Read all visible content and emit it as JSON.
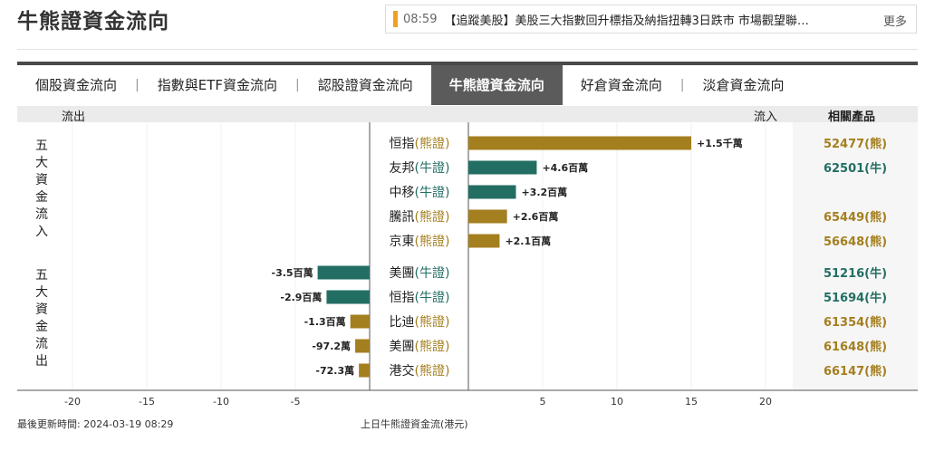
{
  "page_title": "牛熊證資金流向",
  "news": {
    "time": "08:59",
    "headline": "【追蹤美股】美股三大指數回升標指及納指扭轉3日跌市 市場觀望聯…",
    "more": "更多"
  },
  "tabs": [
    "個股資金流向",
    "指數與ETF資金流向",
    "認股證資金流向",
    "牛熊證資金流向",
    "好倉資金流向",
    "淡倉資金流向"
  ],
  "active_tab": 3,
  "header": {
    "outflow": "流出",
    "inflow": "流入",
    "products": "相關產品"
  },
  "side_labels": {
    "inflow": "五大資金流入",
    "outflow": "五大資金流出"
  },
  "colors": {
    "bull": "#236e63",
    "bear": "#a47f1f"
  },
  "footer": {
    "updated": "最後更新時間: 2024-03-19 08:29",
    "caption": "上日牛熊證資金流(港元)"
  },
  "chart_data": {
    "type": "bar",
    "orientation": "horizontal",
    "xlim": [
      -22,
      22
    ],
    "xticks": [
      -20,
      -15,
      -10,
      -5,
      5,
      10,
      15,
      20
    ],
    "rows": [
      {
        "name": "恒指",
        "kind": "熊證",
        "value_label": "+1.5千萬",
        "value": 15,
        "product": "52477(熊)"
      },
      {
        "name": "友邦",
        "kind": "牛證",
        "value_label": "+4.6百萬",
        "value": 4.6,
        "product": "62501(牛)"
      },
      {
        "name": "中移",
        "kind": "牛證",
        "value_label": "+3.2百萬",
        "value": 3.2,
        "product": ""
      },
      {
        "name": "騰訊",
        "kind": "熊證",
        "value_label": "+2.6百萬",
        "value": 2.6,
        "product": "65449(熊)"
      },
      {
        "name": "京東",
        "kind": "熊證",
        "value_label": "+2.1百萬",
        "value": 2.1,
        "product": "56648(熊)"
      },
      {
        "name": "美團",
        "kind": "牛證",
        "value_label": "-3.5百萬",
        "value": -3.5,
        "product": "51216(牛)"
      },
      {
        "name": "恒指",
        "kind": "牛證",
        "value_label": "-2.9百萬",
        "value": -2.9,
        "product": "51694(牛)"
      },
      {
        "name": "比迪",
        "kind": "熊證",
        "value_label": "-1.3百萬",
        "value": -1.3,
        "product": "61354(熊)"
      },
      {
        "name": "美團",
        "kind": "熊證",
        "value_label": "-97.2萬",
        "value": -0.972,
        "product": "61648(熊)"
      },
      {
        "name": "港交",
        "kind": "熊證",
        "value_label": "-72.3萬",
        "value": -0.723,
        "product": "66147(熊)"
      }
    ]
  }
}
